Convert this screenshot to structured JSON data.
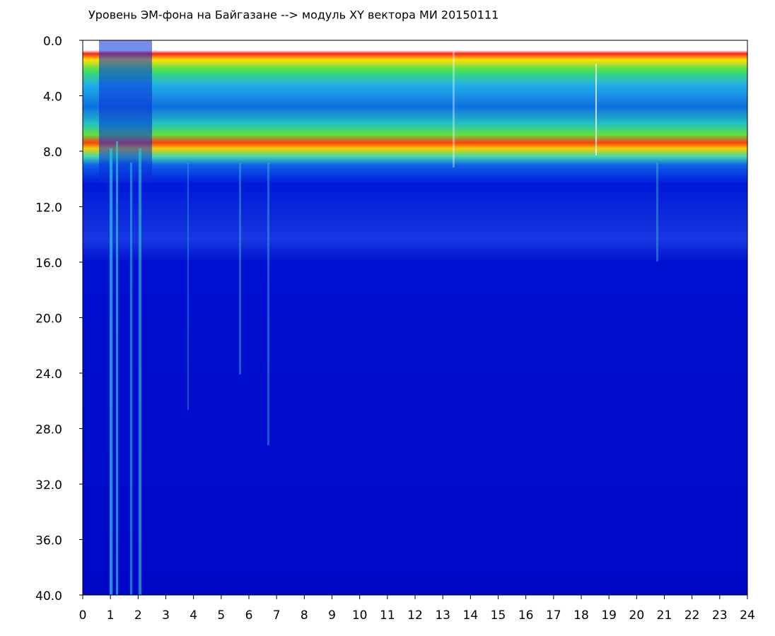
{
  "chart_data": {
    "type": "spectrogram",
    "title": "Уровень ЭМ-фона на Байгазане  --> модуль XY вектора МИ  20150111",
    "xlim": [
      0,
      24
    ],
    "xticks": [
      0,
      1,
      2,
      3,
      4,
      5,
      6,
      7,
      8,
      9,
      10,
      11,
      12,
      13,
      14,
      15,
      16,
      17,
      18,
      19,
      20,
      21,
      22,
      23,
      24
    ],
    "ylim": [
      0,
      40
    ],
    "yticks": [
      {
        "value": 0,
        "label": "0.0"
      },
      {
        "value": 4,
        "label": "4.0"
      },
      {
        "value": 8,
        "label": "8.0"
      },
      {
        "value": 12,
        "label": "12.0"
      },
      {
        "value": 16,
        "label": "16.0"
      },
      {
        "value": 20,
        "label": "20.0"
      },
      {
        "value": 24,
        "label": "24.0"
      },
      {
        "value": 28,
        "label": "28.0"
      },
      {
        "value": 32,
        "label": "32.0"
      },
      {
        "value": 36,
        "label": "36.0"
      },
      {
        "value": 40,
        "label": "40.0"
      }
    ]
  }
}
